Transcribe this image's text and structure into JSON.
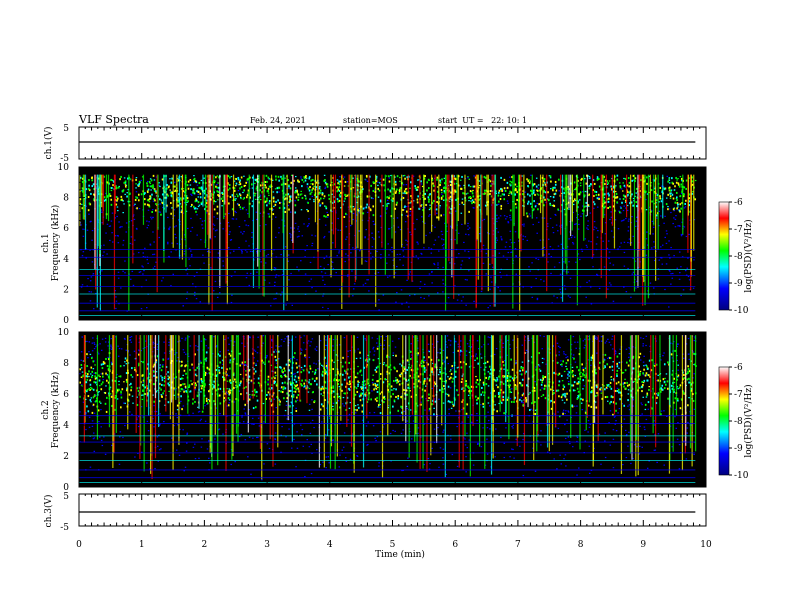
{
  "header": {
    "title": "VLF Spectra",
    "date": "Feb. 24, 2021",
    "station": "station=MOS",
    "start_ut": "start  UT =   22: 10: 1"
  },
  "chart_data": [
    {
      "type": "line",
      "panel": "ch1-voltage",
      "ylabel": "ch.1(V)",
      "ylim": [
        -5,
        5
      ],
      "yticks": [
        "5",
        "-5"
      ],
      "x": [
        0,
        10
      ],
      "y": [
        0,
        0
      ],
      "xlim": [
        0,
        10
      ]
    },
    {
      "type": "heatmap",
      "panel": "ch1-spectrogram",
      "ylabel": "ch.1\nFrequency (kHz)",
      "ylabel_line1": "ch.1",
      "ylabel_line2": "Frequency (kHz)",
      "ylim": [
        0,
        10
      ],
      "yticks": [
        "0",
        "2",
        "4",
        "6",
        "8",
        "10"
      ],
      "xlim": [
        0,
        10
      ],
      "data_extent_min": 9.83,
      "colorbar": {
        "label": "log(PSD)(V²/Hz)",
        "range": [
          -10,
          -6
        ],
        "ticks": [
          "-6",
          "-7",
          "-8",
          "-9",
          "-10"
        ]
      }
    },
    {
      "type": "heatmap",
      "panel": "ch2-spectrogram",
      "ylabel_line1": "ch.2",
      "ylabel_line2": "Frequency (kHz)",
      "ylim": [
        0,
        10
      ],
      "yticks": [
        "0",
        "2",
        "4",
        "6",
        "8",
        "10"
      ],
      "xlim": [
        0,
        10
      ],
      "data_extent_min": 9.83,
      "colorbar": {
        "label": "log(PSD)(V²/Hz)",
        "range": [
          -10,
          -6
        ],
        "ticks": [
          "-6",
          "-7",
          "-8",
          "-9",
          "-10"
        ]
      }
    },
    {
      "type": "line",
      "panel": "ch3-voltage",
      "ylabel": "ch.3(V)",
      "ylim": [
        -5,
        5
      ],
      "yticks": [
        "5",
        "-5"
      ],
      "x": [
        0,
        10
      ],
      "y": [
        0,
        0
      ],
      "xlim": [
        0,
        10
      ]
    }
  ],
  "xaxis": {
    "label": "Time (min)",
    "ticks": [
      "0",
      "1",
      "2",
      "3",
      "4",
      "5",
      "6",
      "7",
      "8",
      "9",
      "10"
    ]
  },
  "colors": {
    "background": "#000000",
    "colormap": [
      "#00007f",
      "#0000ff",
      "#00ffff",
      "#00ff00",
      "#ffff00",
      "#ff0000",
      "#ffffff"
    ]
  }
}
